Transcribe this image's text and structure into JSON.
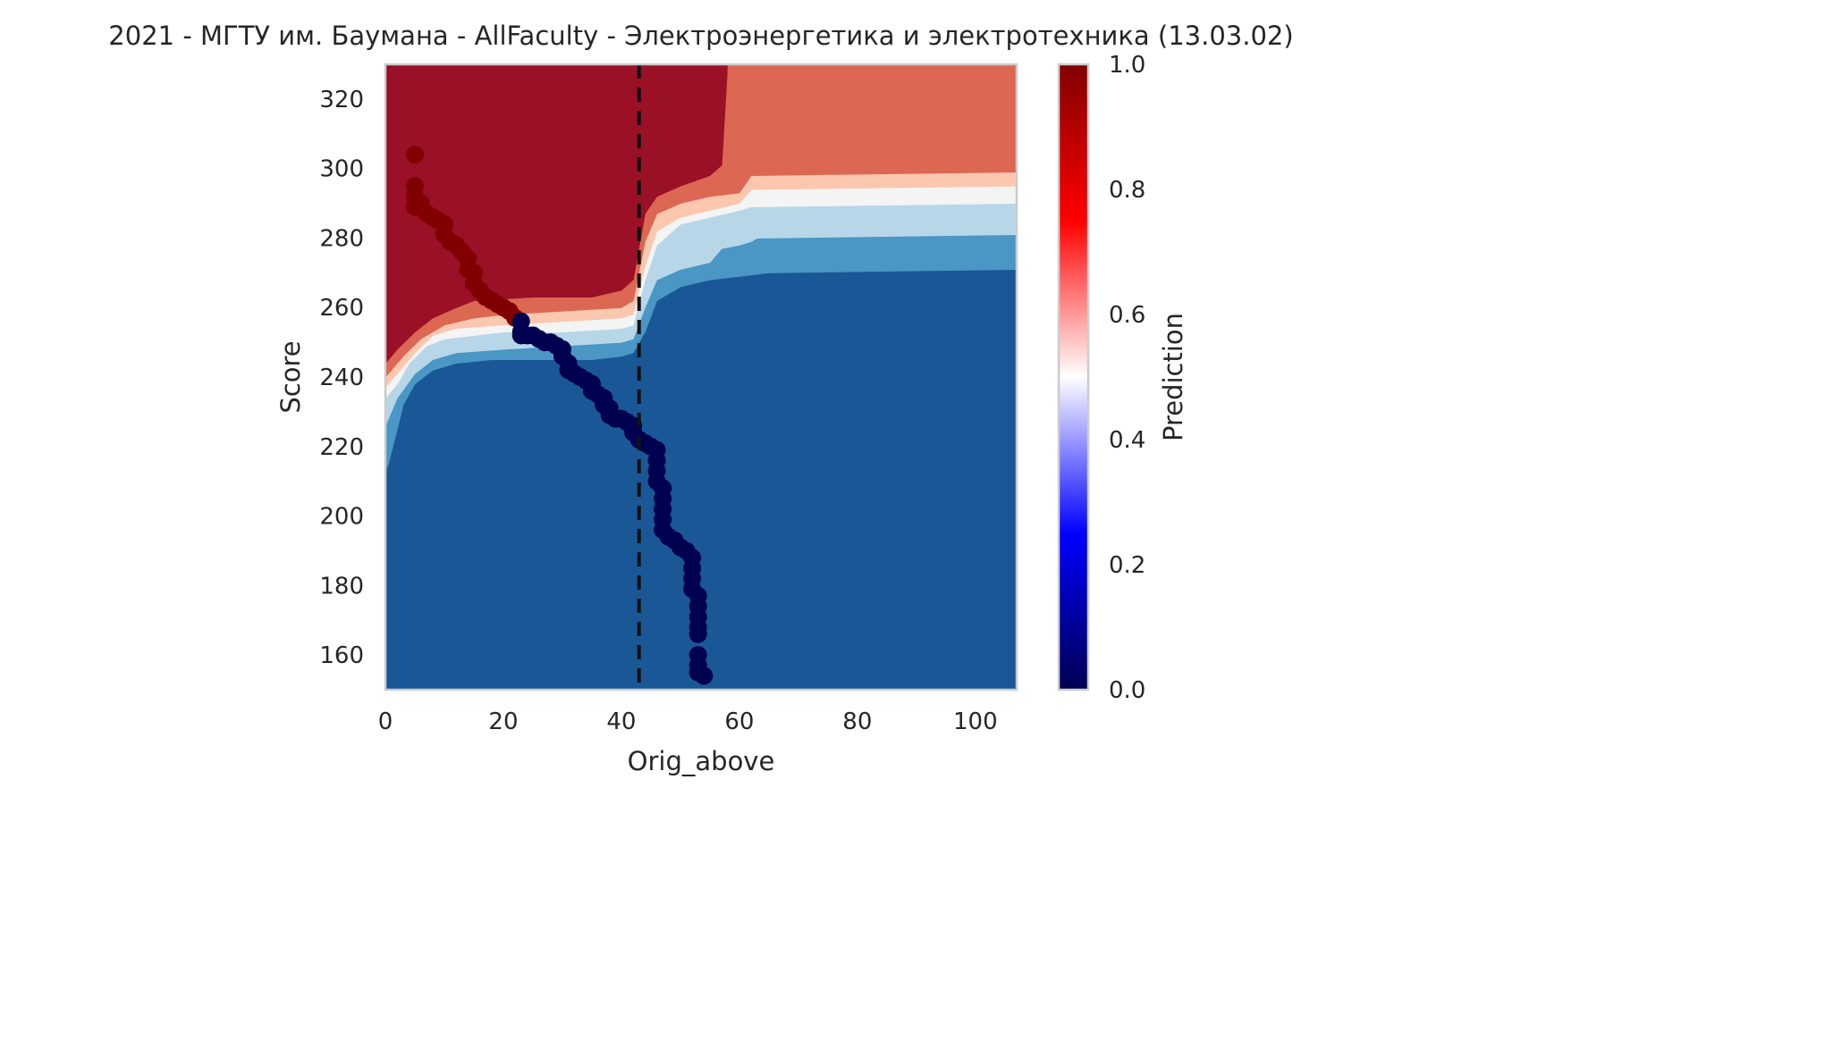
{
  "chart_data": {
    "type": "contour+scatter",
    "title": "2021 - МГТУ им. Баумана - AllFaculty - Электроэнергетика и электротехника (13.03.02)",
    "xlabel": "Orig_above",
    "ylabel": "Score",
    "xlim": [
      0,
      107
    ],
    "ylim": [
      150,
      330
    ],
    "x_ticks": [
      0,
      20,
      40,
      60,
      80,
      100
    ],
    "y_ticks": [
      160,
      180,
      200,
      220,
      240,
      260,
      280,
      300,
      320
    ],
    "grid": false,
    "colorbar": {
      "label": "Prediction",
      "range": [
        0,
        1
      ],
      "ticks": [
        "0.0",
        "0.2",
        "0.4",
        "0.6",
        "0.8",
        "1.0"
      ],
      "colormap": "seismic",
      "colors": [
        "#000050",
        "#0000ff",
        "#ffffff",
        "#ff0000",
        "#800000"
      ]
    },
    "threshold_line": {
      "x": 43,
      "style": "dashed",
      "color": "#111111"
    },
    "contour_levels": [
      {
        "level": "0.0-0.125",
        "color": "#1a5796"
      },
      {
        "level": "0.125-0.25",
        "color": "#4a96c5"
      },
      {
        "level": "0.25-0.375",
        "color": "#b7d7e8"
      },
      {
        "level": "0.375-0.5",
        "color": "#f4f4f4"
      },
      {
        "level": "0.5-0.625",
        "color": "#fbc7ae"
      },
      {
        "level": "0.625-0.75",
        "color": "#dc6753"
      },
      {
        "level": "0.75-1.0",
        "color": "#9a1026"
      }
    ],
    "contour_boundaries": {
      "top_of_low_region": [
        [
          0,
          213
        ],
        [
          0.5,
          215
        ],
        [
          2,
          225
        ],
        [
          3,
          232
        ],
        [
          5,
          238
        ],
        [
          8,
          242
        ],
        [
          12,
          244
        ],
        [
          18,
          245
        ],
        [
          25,
          245
        ],
        [
          35,
          245
        ],
        [
          40,
          246
        ],
        [
          42,
          247
        ],
        [
          44,
          253
        ],
        [
          46,
          262
        ],
        [
          50,
          266
        ],
        [
          55,
          268
        ],
        [
          60,
          269
        ],
        [
          65,
          270
        ],
        [
          107,
          271
        ]
      ],
      "top_of_level1": [
        [
          0,
          226
        ],
        [
          2,
          234
        ],
        [
          5,
          241
        ],
        [
          8,
          245
        ],
        [
          12,
          247
        ],
        [
          20,
          248
        ],
        [
          30,
          249
        ],
        [
          40,
          250
        ],
        [
          42,
          251
        ],
        [
          44,
          260
        ],
        [
          46,
          268
        ],
        [
          50,
          271
        ],
        [
          55,
          273
        ],
        [
          57,
          277
        ],
        [
          60,
          278
        ],
        [
          62,
          279
        ],
        [
          63,
          280
        ],
        [
          107,
          281
        ]
      ],
      "top_of_level2": [
        [
          0,
          234
        ],
        [
          2,
          238
        ],
        [
          4,
          244
        ],
        [
          7,
          249
        ],
        [
          10,
          251
        ],
        [
          15,
          252
        ],
        [
          20,
          253
        ],
        [
          30,
          253
        ],
        [
          40,
          254
        ],
        [
          42,
          255
        ],
        [
          44,
          268
        ],
        [
          46,
          278
        ],
        [
          50,
          284
        ],
        [
          55,
          286
        ],
        [
          60,
          288
        ],
        [
          62,
          289
        ],
        [
          107,
          290
        ]
      ],
      "top_of_level3": [
        [
          0,
          237
        ],
        [
          2,
          241
        ],
        [
          5,
          247
        ],
        [
          8,
          252
        ],
        [
          12,
          254
        ],
        [
          20,
          255
        ],
        [
          30,
          256
        ],
        [
          40,
          257
        ],
        [
          42,
          258
        ],
        [
          44,
          272
        ],
        [
          46,
          282
        ],
        [
          50,
          286
        ],
        [
          55,
          288
        ],
        [
          60,
          290
        ],
        [
          62,
          294
        ],
        [
          107,
          295
        ]
      ],
      "top_of_level4": [
        [
          0,
          240
        ],
        [
          3,
          246
        ],
        [
          6,
          251
        ],
        [
          10,
          255
        ],
        [
          15,
          257
        ],
        [
          20,
          258
        ],
        [
          30,
          259
        ],
        [
          40,
          260
        ],
        [
          42,
          262
        ],
        [
          44,
          279
        ],
        [
          46,
          287
        ],
        [
          50,
          290
        ],
        [
          55,
          292
        ],
        [
          60,
          293
        ],
        [
          62,
          298
        ],
        [
          107,
          299
        ]
      ],
      "top_of_level5": [
        [
          0,
          244
        ],
        [
          2,
          248
        ],
        [
          5,
          253
        ],
        [
          8,
          257
        ],
        [
          12,
          260
        ],
        [
          15,
          262
        ],
        [
          25,
          263
        ],
        [
          35,
          263
        ],
        [
          40,
          265
        ],
        [
          42,
          268
        ],
        [
          44,
          287
        ],
        [
          46,
          292
        ],
        [
          50,
          295
        ],
        [
          55,
          298
        ],
        [
          57,
          301
        ],
        [
          58,
          330
        ]
      ]
    },
    "scatter_points": [
      {
        "x": 5,
        "y": 304,
        "v": 1
      },
      {
        "x": 5,
        "y": 295,
        "v": 1
      },
      {
        "x": 5,
        "y": 292,
        "v": 1
      },
      {
        "x": 5,
        "y": 289,
        "v": 1
      },
      {
        "x": 6,
        "y": 290,
        "v": 1
      },
      {
        "x": 7,
        "y": 287,
        "v": 1
      },
      {
        "x": 8,
        "y": 286,
        "v": 1
      },
      {
        "x": 9,
        "y": 285,
        "v": 1
      },
      {
        "x": 10,
        "y": 284,
        "v": 1
      },
      {
        "x": 10,
        "y": 281,
        "v": 1
      },
      {
        "x": 11,
        "y": 279,
        "v": 1
      },
      {
        "x": 12,
        "y": 278,
        "v": 1
      },
      {
        "x": 13,
        "y": 276,
        "v": 1
      },
      {
        "x": 14,
        "y": 274,
        "v": 1
      },
      {
        "x": 14,
        "y": 271,
        "v": 1
      },
      {
        "x": 15,
        "y": 270,
        "v": 1
      },
      {
        "x": 15,
        "y": 267,
        "v": 1
      },
      {
        "x": 16,
        "y": 265,
        "v": 1
      },
      {
        "x": 17,
        "y": 263,
        "v": 1
      },
      {
        "x": 18,
        "y": 262,
        "v": 1
      },
      {
        "x": 19,
        "y": 261,
        "v": 1
      },
      {
        "x": 20,
        "y": 260,
        "v": 1
      },
      {
        "x": 21,
        "y": 259,
        "v": 1
      },
      {
        "x": 22,
        "y": 257,
        "v": 1
      },
      {
        "x": 23,
        "y": 256,
        "v": 0
      },
      {
        "x": 23,
        "y": 253,
        "v": 0
      },
      {
        "x": 23,
        "y": 252,
        "v": 0
      },
      {
        "x": 24,
        "y": 252,
        "v": 0
      },
      {
        "x": 25,
        "y": 252,
        "v": 0
      },
      {
        "x": 26,
        "y": 251,
        "v": 0
      },
      {
        "x": 27,
        "y": 250,
        "v": 0
      },
      {
        "x": 28,
        "y": 250,
        "v": 0
      },
      {
        "x": 29,
        "y": 249,
        "v": 0
      },
      {
        "x": 30,
        "y": 248,
        "v": 0
      },
      {
        "x": 30,
        "y": 246,
        "v": 0
      },
      {
        "x": 31,
        "y": 244,
        "v": 0
      },
      {
        "x": 31,
        "y": 242,
        "v": 0
      },
      {
        "x": 32,
        "y": 241,
        "v": 0
      },
      {
        "x": 33,
        "y": 240,
        "v": 0
      },
      {
        "x": 34,
        "y": 239,
        "v": 0
      },
      {
        "x": 35,
        "y": 238,
        "v": 0
      },
      {
        "x": 35,
        "y": 236,
        "v": 0
      },
      {
        "x": 36,
        "y": 235,
        "v": 0
      },
      {
        "x": 37,
        "y": 234,
        "v": 0
      },
      {
        "x": 37,
        "y": 232,
        "v": 0
      },
      {
        "x": 38,
        "y": 231,
        "v": 0
      },
      {
        "x": 38,
        "y": 229,
        "v": 0
      },
      {
        "x": 39,
        "y": 228,
        "v": 0
      },
      {
        "x": 40,
        "y": 228,
        "v": 0
      },
      {
        "x": 41,
        "y": 227,
        "v": 0
      },
      {
        "x": 42,
        "y": 226,
        "v": 0
      },
      {
        "x": 42,
        "y": 224,
        "v": 0
      },
      {
        "x": 43,
        "y": 222,
        "v": 0
      },
      {
        "x": 44,
        "y": 221,
        "v": 0
      },
      {
        "x": 45,
        "y": 220,
        "v": 0
      },
      {
        "x": 46,
        "y": 219,
        "v": 0
      },
      {
        "x": 46,
        "y": 216,
        "v": 0
      },
      {
        "x": 46,
        "y": 213,
        "v": 0
      },
      {
        "x": 46,
        "y": 210,
        "v": 0
      },
      {
        "x": 47,
        "y": 208,
        "v": 0
      },
      {
        "x": 47,
        "y": 205,
        "v": 0
      },
      {
        "x": 47,
        "y": 202,
        "v": 0
      },
      {
        "x": 47,
        "y": 199,
        "v": 0
      },
      {
        "x": 47,
        "y": 196,
        "v": 0
      },
      {
        "x": 48,
        "y": 194,
        "v": 0
      },
      {
        "x": 49,
        "y": 193,
        "v": 0
      },
      {
        "x": 50,
        "y": 191,
        "v": 0
      },
      {
        "x": 51,
        "y": 190,
        "v": 0
      },
      {
        "x": 52,
        "y": 188,
        "v": 0
      },
      {
        "x": 52,
        "y": 185,
        "v": 0
      },
      {
        "x": 52,
        "y": 182,
        "v": 0
      },
      {
        "x": 52,
        "y": 179,
        "v": 0
      },
      {
        "x": 53,
        "y": 177,
        "v": 0
      },
      {
        "x": 53,
        "y": 174,
        "v": 0
      },
      {
        "x": 53,
        "y": 171,
        "v": 0
      },
      {
        "x": 53,
        "y": 168,
        "v": 0
      },
      {
        "x": 53,
        "y": 166,
        "v": 0
      },
      {
        "x": 53,
        "y": 160,
        "v": 0
      },
      {
        "x": 53,
        "y": 157,
        "v": 0
      },
      {
        "x": 53,
        "y": 155,
        "v": 0
      },
      {
        "x": 54,
        "y": 154,
        "v": 0
      }
    ]
  }
}
